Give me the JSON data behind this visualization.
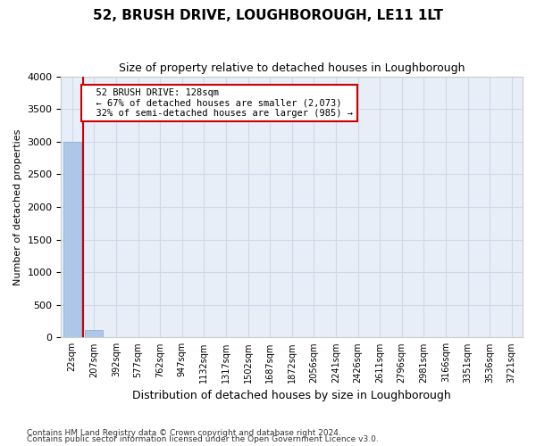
{
  "title": "52, BRUSH DRIVE, LOUGHBOROUGH, LE11 1LT",
  "subtitle": "Size of property relative to detached houses in Loughborough",
  "xlabel": "Distribution of detached houses by size in Loughborough",
  "ylabel": "Number of detached properties",
  "footnote1": "Contains HM Land Registry data © Crown copyright and database right 2024.",
  "footnote2": "Contains public sector information licensed under the Open Government Licence v3.0.",
  "bin_labels": [
    "22sqm",
    "207sqm",
    "392sqm",
    "577sqm",
    "762sqm",
    "947sqm",
    "1132sqm",
    "1317sqm",
    "1502sqm",
    "1687sqm",
    "1872sqm",
    "2056sqm",
    "2241sqm",
    "2426sqm",
    "2611sqm",
    "2796sqm",
    "2981sqm",
    "3166sqm",
    "3351sqm",
    "3536sqm",
    "3721sqm"
  ],
  "bar_values": [
    3000,
    120,
    5,
    2,
    1,
    1,
    0,
    0,
    0,
    0,
    0,
    0,
    0,
    0,
    0,
    0,
    0,
    0,
    0,
    0,
    0
  ],
  "bar_color": "#aec6e8",
  "bar_edge_color": "#7aafd4",
  "grid_color": "#d0d8e8",
  "background_color": "#e8eef8",
  "property_line_color": "#cc0000",
  "ylim": [
    0,
    4000
  ],
  "yticks": [
    0,
    500,
    1000,
    1500,
    2000,
    2500,
    3000,
    3500,
    4000
  ],
  "annotation_title": "52 BRUSH DRIVE: 128sqm",
  "annotation_line1": "← 67% of detached houses are smaller (2,073)",
  "annotation_line2": "32% of semi-detached houses are larger (985) →",
  "annotation_box_color": "#ffffff",
  "annotation_border_color": "#cc0000"
}
